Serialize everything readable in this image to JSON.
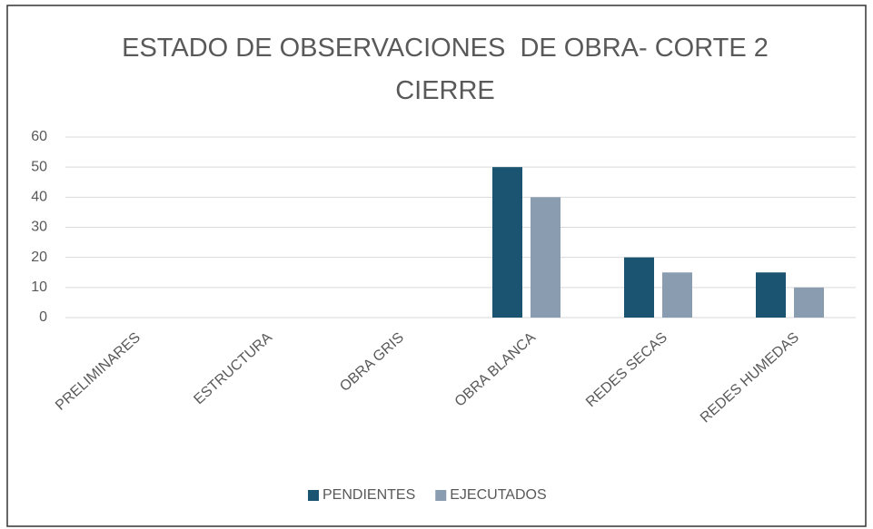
{
  "chart_data": {
    "type": "bar",
    "title": "ESTADO DE OBSERVACIONES  DE OBRA- CORTE 2 CIERRE",
    "categories": [
      "PRELIMINARES",
      "ESTRUCTURA",
      "OBRA GRIS",
      "OBRA BLANCA",
      "REDES SECAS",
      "REDES HUMEDAS"
    ],
    "series": [
      {
        "name": "PENDIENTES",
        "color": "#1a5470",
        "values": [
          0,
          0,
          0,
          50,
          20,
          15
        ]
      },
      {
        "name": "EJECUTADOS",
        "color": "#8a9db0",
        "values": [
          0,
          0,
          0,
          40,
          15,
          10
        ]
      }
    ],
    "ylim": [
      0,
      60
    ],
    "yticks": [
      0,
      10,
      20,
      30,
      40,
      50,
      60
    ],
    "grid": true,
    "legend": "bottom"
  }
}
